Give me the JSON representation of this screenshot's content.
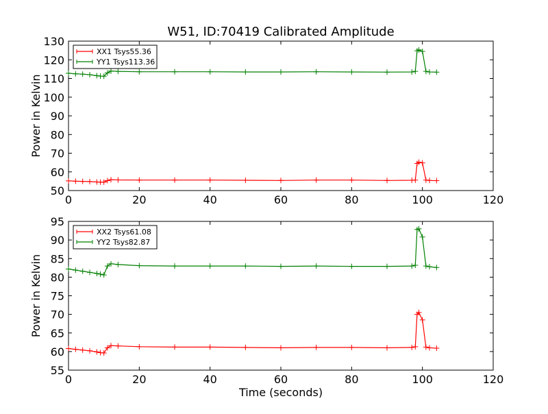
{
  "title": "W51, ID:70419 Calibrated Amplitude",
  "colors": {
    "red": "#ff0000",
    "green": "#007f00"
  },
  "chart_data": [
    {
      "type": "line",
      "title": "W51, ID:70419 Calibrated Amplitude",
      "xlabel": "",
      "ylabel": "Power in Kelvin",
      "xlim": [
        0,
        120
      ],
      "ylim": [
        50,
        130
      ],
      "xticks": [
        "0",
        "20",
        "40",
        "60",
        "80",
        "100",
        "120"
      ],
      "yticks": [
        "50",
        "60",
        "70",
        "80",
        "90",
        "100",
        "110",
        "120",
        "130"
      ],
      "grid": false,
      "legend_position": "top-left",
      "series": [
        {
          "name": "XX1 Tsys55.36",
          "color": "#ff0000",
          "x": [
            0,
            2,
            4,
            6,
            8,
            9,
            10,
            11,
            12,
            14,
            20,
            30,
            40,
            50,
            60,
            70,
            80,
            90,
            97,
            98,
            98.5,
            99,
            100,
            101,
            102,
            104
          ],
          "y": [
            55.2,
            55.0,
            54.9,
            54.8,
            54.6,
            54.5,
            54.5,
            55.3,
            55.8,
            55.7,
            55.6,
            55.6,
            55.6,
            55.5,
            55.4,
            55.6,
            55.6,
            55.4,
            55.5,
            55.6,
            64.5,
            65.2,
            64.8,
            55.6,
            55.4,
            55.3
          ]
        },
        {
          "name": "YY1 Tsys113.36",
          "color": "#007f00",
          "x": [
            0,
            2,
            4,
            6,
            8,
            9,
            10,
            11,
            12,
            14,
            20,
            30,
            40,
            50,
            60,
            70,
            80,
            90,
            97,
            98,
            98.5,
            99,
            100,
            101,
            102,
            104
          ],
          "y": [
            112.8,
            112.5,
            112.3,
            112.0,
            111.5,
            111.3,
            111.2,
            113.0,
            114.0,
            113.8,
            113.6,
            113.6,
            113.6,
            113.5,
            113.5,
            113.6,
            113.5,
            113.4,
            113.5,
            113.8,
            124.8,
            125.3,
            124.5,
            113.8,
            113.5,
            113.4
          ]
        }
      ]
    },
    {
      "type": "line",
      "title": "",
      "xlabel": "Time (seconds)",
      "ylabel": "Power in Kelvin",
      "xlim": [
        0,
        120
      ],
      "ylim": [
        55,
        95
      ],
      "xticks": [
        "0",
        "20",
        "40",
        "60",
        "80",
        "100",
        "120"
      ],
      "yticks": [
        "55",
        "60",
        "65",
        "70",
        "75",
        "80",
        "85",
        "90",
        "95"
      ],
      "grid": false,
      "legend_position": "top-left",
      "series": [
        {
          "name": "XX2 Tsys61.08",
          "color": "#ff0000",
          "x": [
            0,
            2,
            4,
            6,
            8,
            9,
            10,
            11,
            12,
            14,
            20,
            30,
            40,
            50,
            60,
            70,
            80,
            90,
            97,
            98,
            98.5,
            99,
            100,
            101,
            102,
            104
          ],
          "y": [
            60.8,
            60.6,
            60.4,
            60.2,
            59.9,
            59.7,
            59.6,
            61.0,
            61.6,
            61.5,
            61.3,
            61.2,
            61.2,
            61.1,
            61.0,
            61.1,
            61.1,
            61.0,
            61.1,
            61.3,
            70.0,
            70.5,
            68.5,
            61.2,
            61.0,
            60.9
          ]
        },
        {
          "name": "YY2 Tsys82.87",
          "color": "#007f00",
          "x": [
            0,
            2,
            4,
            6,
            8,
            9,
            10,
            11,
            12,
            14,
            20,
            30,
            40,
            50,
            60,
            70,
            80,
            90,
            97,
            98,
            98.5,
            99,
            100,
            101,
            102,
            104
          ],
          "y": [
            82.2,
            81.9,
            81.6,
            81.3,
            81.0,
            80.8,
            80.6,
            83.0,
            83.6,
            83.4,
            83.1,
            83.0,
            83.0,
            83.0,
            82.9,
            83.0,
            82.9,
            82.9,
            83.0,
            83.2,
            92.8,
            93.0,
            90.8,
            83.0,
            82.8,
            82.6
          ]
        }
      ]
    }
  ]
}
